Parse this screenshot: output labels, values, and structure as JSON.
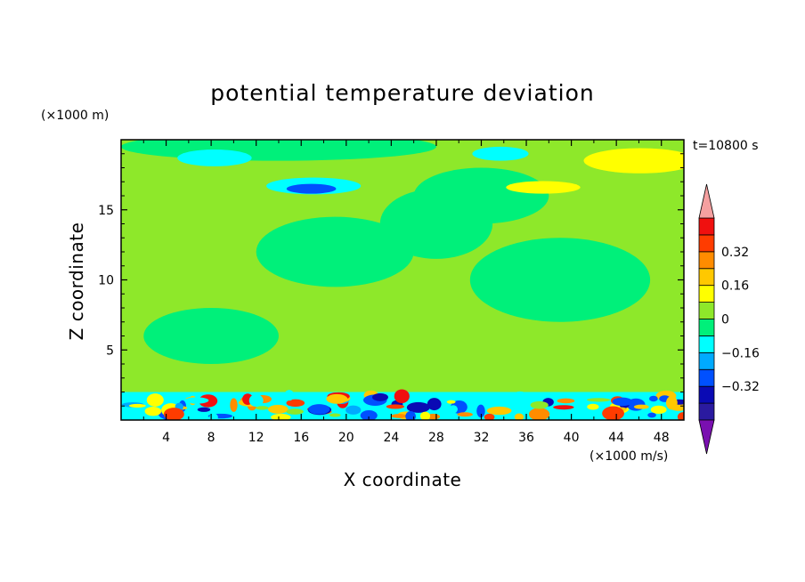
{
  "chart_data": {
    "type": "heatmap",
    "title": "potential temperature deviation",
    "xlabel": "X coordinate",
    "ylabel": "Z coordinate",
    "x_unit": "(×1000 m/s)",
    "y_unit": "(×1000 m)",
    "time_label": "t=10800 s",
    "xlim": [
      0,
      50
    ],
    "ylim": [
      0,
      20
    ],
    "x_ticks": [
      4,
      8,
      12,
      16,
      20,
      24,
      28,
      32,
      36,
      40,
      44,
      48
    ],
    "y_ticks": [
      5,
      10,
      15
    ],
    "colorbar": {
      "levels": [
        -0.48,
        -0.4,
        -0.32,
        -0.24,
        -0.16,
        -0.08,
        0,
        0.08,
        0.16,
        0.24,
        0.32,
        0.4,
        0.48
      ],
      "colors": [
        "#7a10b0",
        "#2a1aa0",
        "#0a0ab4",
        "#0050ff",
        "#00aaff",
        "#00ffff",
        "#00f07a",
        "#8ee82a",
        "#ffff00",
        "#ffc800",
        "#ff8c00",
        "#ff3c00",
        "#f0100f",
        "#f5a0a0"
      ],
      "labels": [
        "0.32",
        "0.16",
        "0",
        "−0.16",
        "−0.32"
      ],
      "label_values": [
        0.32,
        0.16,
        0,
        -0.16,
        -0.32
      ],
      "extend": "both"
    },
    "background_level": 0.04,
    "features": [
      {
        "x": 19,
        "z": 12.0,
        "rx": 7,
        "rz": 2.5,
        "value": -0.04
      },
      {
        "x": 39,
        "z": 10.0,
        "rx": 8,
        "rz": 3.0,
        "value": -0.04
      },
      {
        "x": 28,
        "z": 14.0,
        "rx": 5,
        "rz": 2.5,
        "value": -0.04
      },
      {
        "x": 8,
        "z": 6.0,
        "rx": 6,
        "rz": 2.0,
        "value": -0.04
      },
      {
        "x": 14,
        "z": 19.5,
        "rx": 14,
        "rz": 1.0,
        "value": -0.04
      },
      {
        "x": 32,
        "z": 16.0,
        "rx": 6,
        "rz": 2.0,
        "value": -0.04
      },
      {
        "x": 8.3,
        "z": 18.7,
        "rx": 3.3,
        "rz": 0.6,
        "value": -0.12
      },
      {
        "x": 17.1,
        "z": 16.7,
        "rx": 4.2,
        "rz": 0.6,
        "value": -0.12
      },
      {
        "x": 16.9,
        "z": 16.5,
        "rx": 2.2,
        "rz": 0.35,
        "value": -0.28
      },
      {
        "x": 33.7,
        "z": 19.0,
        "rx": 2.5,
        "rz": 0.5,
        "value": -0.12
      },
      {
        "x": 46.1,
        "z": 18.5,
        "rx": 5.0,
        "rz": 0.9,
        "value": 0.12
      },
      {
        "x": 37.5,
        "z": 16.6,
        "rx": 3.3,
        "rz": 0.45,
        "value": 0.12
      }
    ],
    "boundary_layer_top": 2.0
  }
}
